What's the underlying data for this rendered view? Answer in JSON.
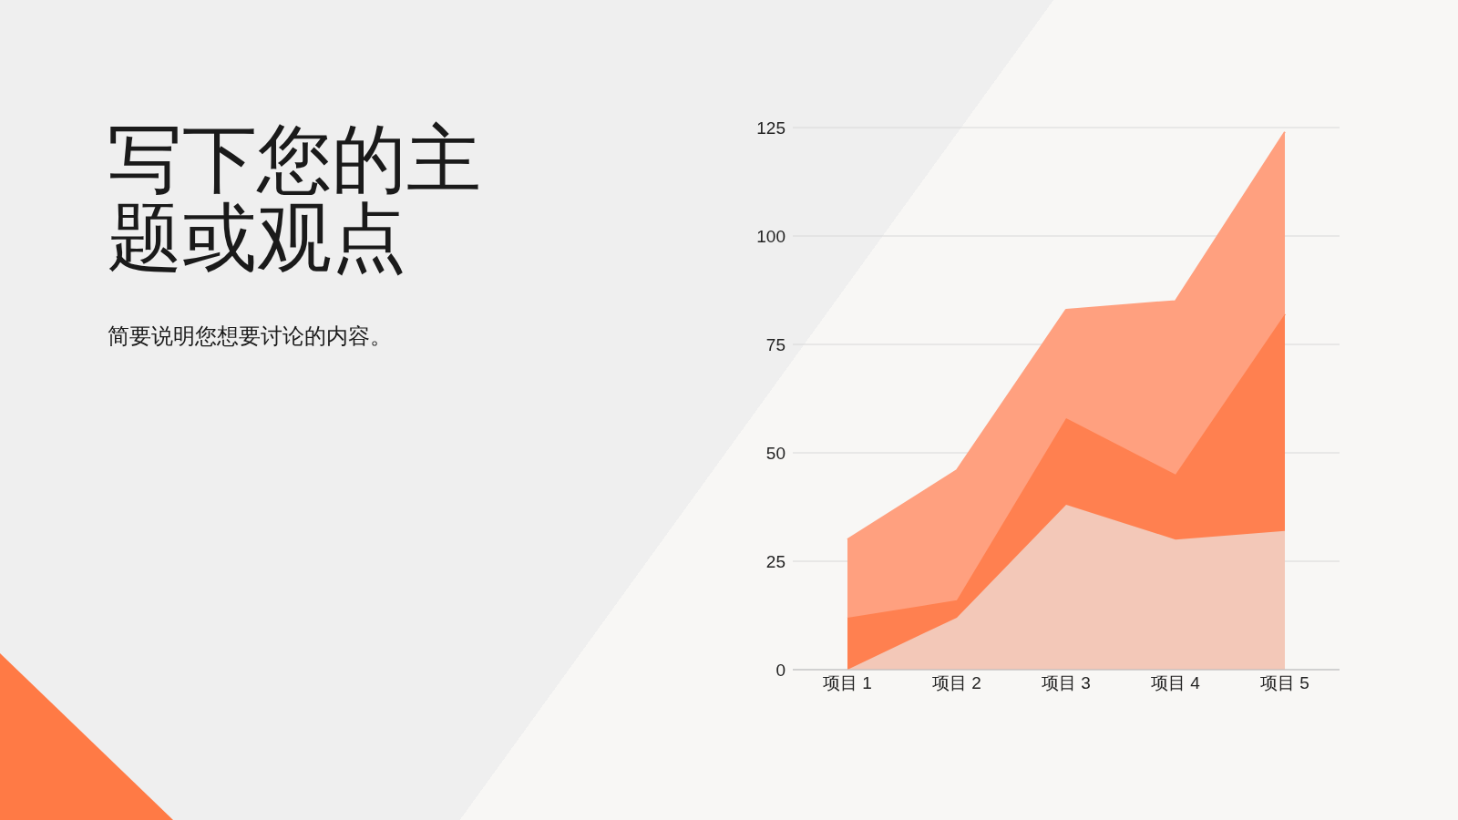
{
  "chart_data": {
    "type": "area",
    "title": "写下您的主题或观点",
    "subtitle": "简要说明您想要讨论的内容。",
    "categories": [
      "项目 1",
      "项目 2",
      "项目 3",
      "项目 4",
      "项目 5"
    ],
    "stacked": true,
    "series": [
      {
        "color": "#f3c8b8",
        "values": [
          0,
          12,
          38,
          30,
          32
        ]
      },
      {
        "color": "#ff8050",
        "values": [
          12,
          4,
          20,
          15,
          50
        ]
      },
      {
        "color": "#ffa07f",
        "values": [
          18,
          30,
          25,
          40,
          42
        ]
      }
    ],
    "ylim": [
      0,
      125
    ],
    "yticks": [
      0,
      25,
      50,
      75,
      100,
      125
    ],
    "grid": "y",
    "legend": false
  }
}
